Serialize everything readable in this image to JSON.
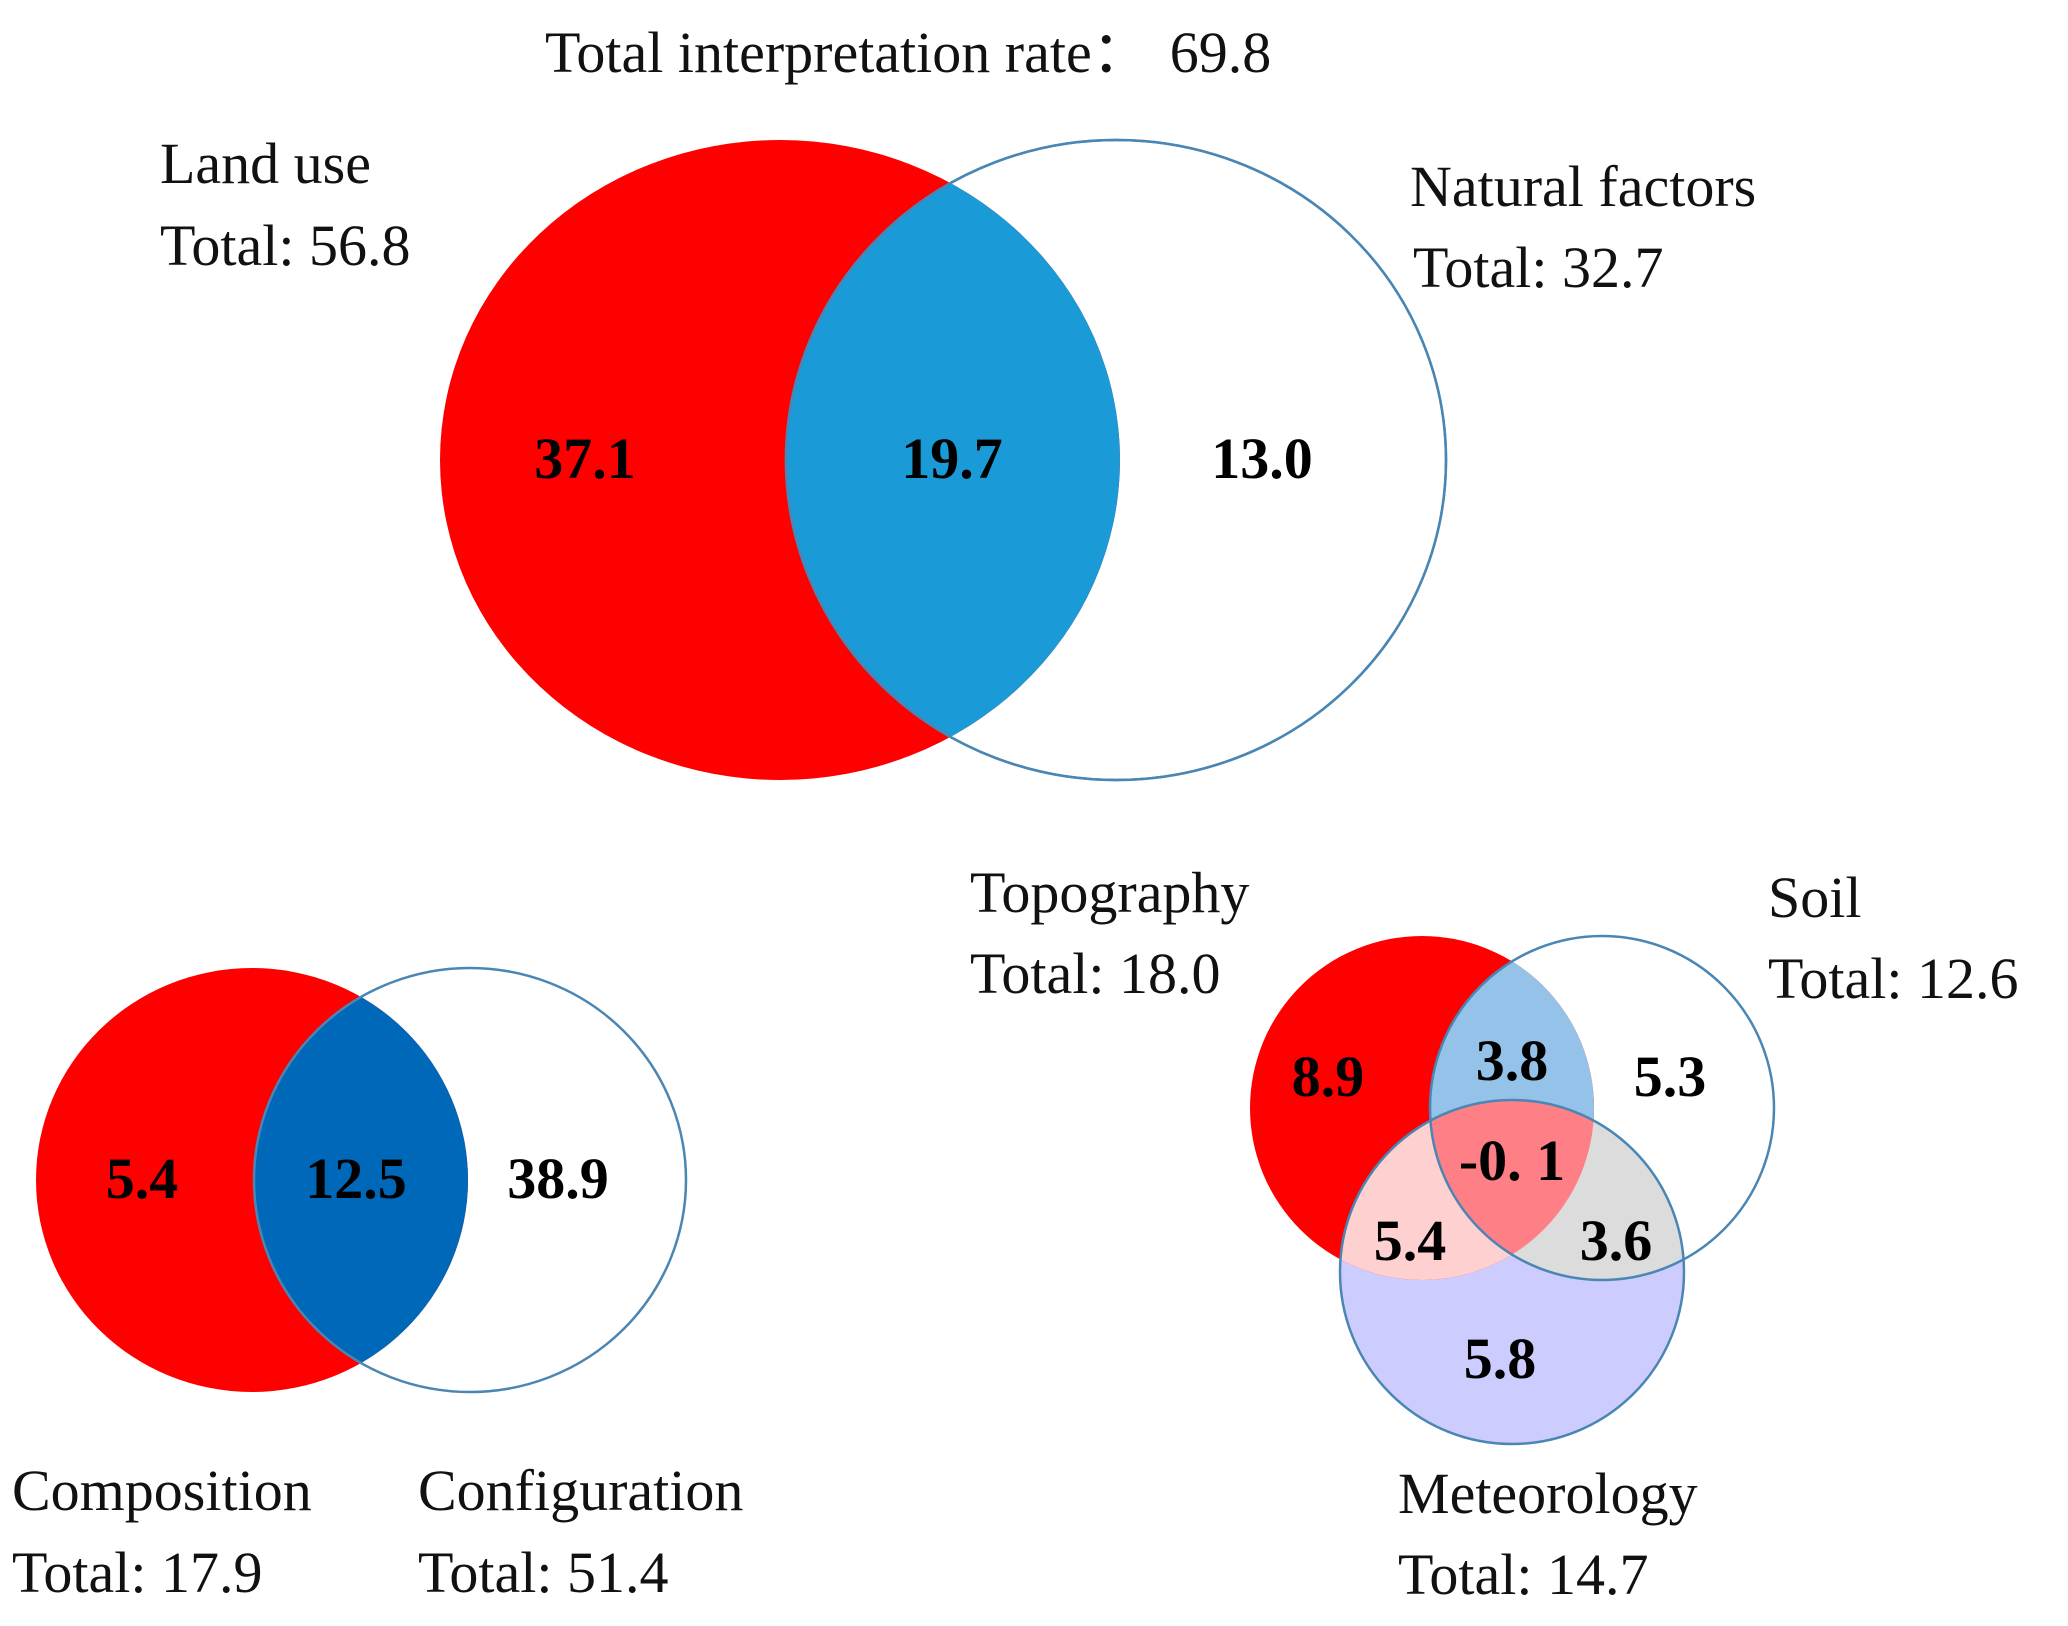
{
  "title": {
    "prefix": "Total interpretation rate",
    "separator": "：",
    "value": "69.8"
  },
  "main_venn": {
    "left": {
      "name": "Land use",
      "total": "Total: 56.8",
      "fill": "#ff0000"
    },
    "right": {
      "name": "Natural factors",
      "total": "Total: 32.7",
      "fill": "#ffffff"
    },
    "overlap_fill": "#1a9ad6",
    "values": {
      "left_only": "37.1",
      "overlap": "19.7",
      "right_only": "13.0"
    }
  },
  "land_use_venn": {
    "left": {
      "name": "Composition",
      "total": "Total: 17.9",
      "fill": "#ff0000"
    },
    "right": {
      "name": "Configuration",
      "total": "Total: 51.4",
      "fill": "#ffffff"
    },
    "overlap_fill": "#0068b8",
    "values": {
      "left_only": "5.4",
      "overlap": "12.5",
      "right_only": "38.9"
    }
  },
  "natural_venn": {
    "topography": {
      "name": "Topography",
      "total": "Total: 18.0",
      "fill": "#ff0000"
    },
    "soil": {
      "name": "Soil",
      "total": "Total: 12.6",
      "fill": "#ffffff"
    },
    "meteorology": {
      "name": "Meteorology",
      "total": "Total: 14.7",
      "fill": "#ccccff"
    },
    "colors": {
      "topo_soil": "#94c2e8",
      "topo_met": "#ffd0d0",
      "soil_met": "#dcdcdc",
      "center": "#ff7f87"
    },
    "values": {
      "topography_only": "8.9",
      "topo_soil": "3.8",
      "soil_only": "5.3",
      "center": "-0. 1",
      "topo_met": "5.4",
      "soil_met": "3.6",
      "meteorology_only": "5.8"
    }
  },
  "outline_color": "#4a86b4"
}
